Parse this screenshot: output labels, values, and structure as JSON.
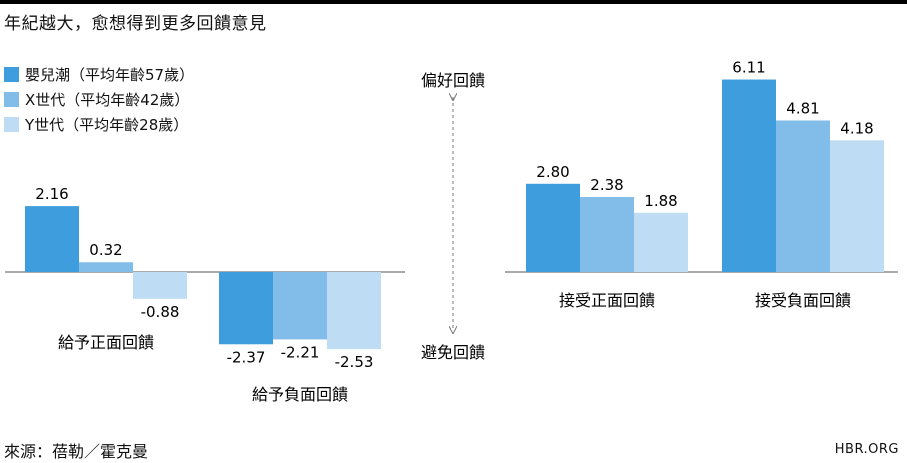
{
  "title": "年紀越大，愈想得到更多回饋意見",
  "colors": {
    "boomer": "#3e9ddc",
    "genx": "#82bce8",
    "geny": "#bedcf3"
  },
  "axis_labels": {
    "top": "偏好回饋",
    "bottom": "避免回饋"
  },
  "source": "來源：蓓勒／霍克曼",
  "brand": "HBR.ORG",
  "chart_data": [
    {
      "type": "bar",
      "title": "",
      "categories": [
        "給予正面回饋",
        "給予負面回饋"
      ],
      "series": [
        {
          "name": "嬰兒潮（平均年齡57歲）",
          "values": [
            2.16,
            -2.37
          ]
        },
        {
          "name": "X世代（平均年齡42歲）",
          "values": [
            0.32,
            -2.21
          ]
        },
        {
          "name": "Y世代（平均年齡28歲）",
          "values": [
            -0.88,
            -2.53
          ]
        }
      ],
      "value_labels": [
        [
          "2.16",
          "-2.37"
        ],
        [
          "0.32",
          "-2.21"
        ],
        [
          "-0.88",
          "-2.53"
        ]
      ],
      "xlabel": "",
      "ylabel": "",
      "legend": "top-left",
      "grid": false
    },
    {
      "type": "bar",
      "title": "",
      "categories": [
        "接受正面回饋",
        "接受負面回饋"
      ],
      "series": [
        {
          "name": "嬰兒潮（平均年齡57歲）",
          "values": [
            2.8,
            6.11
          ]
        },
        {
          "name": "X世代（平均年齡42歲）",
          "values": [
            2.38,
            4.81
          ]
        },
        {
          "name": "Y世代（平均年齡28歲）",
          "values": [
            1.88,
            4.18
          ]
        }
      ],
      "value_labels": [
        [
          "2.80",
          "6.11"
        ],
        [
          "2.38",
          "4.81"
        ],
        [
          "1.88",
          "4.18"
        ]
      ],
      "xlabel": "",
      "ylabel": "",
      "grid": false
    }
  ]
}
